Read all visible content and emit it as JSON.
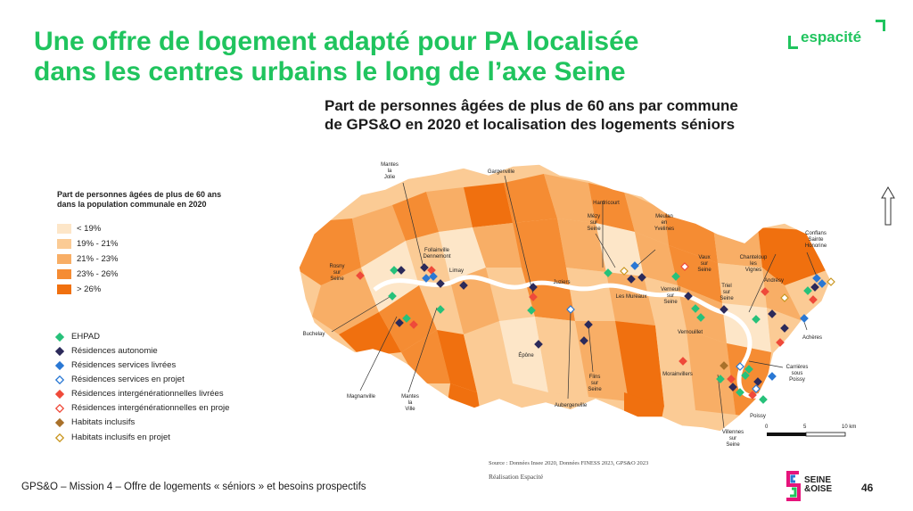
{
  "slide": {
    "title_line1": "Une offre de logement adapté pour PA localisée",
    "title_line2": "dans les centres urbains le long de l’axe Seine",
    "brand": "espacité",
    "footer": "GPS&O – Mission 4 – Offre de logements « séniors » et besoins prospectifs",
    "page_number": "46",
    "partner_logo_line1": "SEINE",
    "partner_logo_line2": "&OISE"
  },
  "map": {
    "title_line1": "Part de personnes âgées de plus de 60 ans par commune",
    "title_line2": "de GPS&O en 2020 et localisation des logements séniors",
    "source": "Source : Données Insee 2020, Données FINESS 2023, GPS&O 2023",
    "realisation": "Réalisation Espacité",
    "scale": {
      "labels": [
        "0",
        "5",
        "10 km"
      ]
    },
    "legend": {
      "title_line1": "Part de personnes âgées de plus de 60 ans",
      "title_line2": "dans la population communale en 2020",
      "classes": [
        {
          "label": "< 19%",
          "color": "#fde6c8"
        },
        {
          "label": "19% - 21%",
          "color": "#fbcb95"
        },
        {
          "label": "21% - 23%",
          "color": "#f8ae66"
        },
        {
          "label": "23% - 26%",
          "color": "#f58c33"
        },
        {
          "label": "> 26%",
          "color": "#f0700f"
        }
      ],
      "symbols": [
        {
          "label": "EHPAD",
          "color": "#27c17a",
          "style": "filled"
        },
        {
          "label": "Résidences autonomie",
          "color": "#2c2a5a",
          "style": "filled"
        },
        {
          "label": "Résidences services livrées",
          "color": "#2a78d4",
          "style": "filled"
        },
        {
          "label": "Résidences services en projet",
          "color": "#2a78d4",
          "style": "outline"
        },
        {
          "label": "Résidences intergénérationnelles livrées",
          "color": "#ef4a3a",
          "style": "filled"
        },
        {
          "label": "Résidences intergénérationnelles en proje",
          "color": "#ef4a3a",
          "style": "outline"
        },
        {
          "label": "Habitats inclusifs",
          "color": "#a9712a",
          "style": "filled"
        },
        {
          "label": "Habitats inclusifs en projet",
          "color": "#c9961f",
          "style": "outline"
        }
      ]
    },
    "place_labels": [
      "Mantes la Jolie",
      "Gargenville",
      "Hardricourt",
      "Meulan en Yvelines",
      "Conflans Sainte Honorine",
      "Follainville Dennemont",
      "Limay",
      "Rosny sur Seine",
      "Mézy sur Seine",
      "Juziers",
      "Les Mureaux",
      "Vaux sur Seine",
      "Chanteloup les Vignes",
      "Andrésy",
      "Verneuil sur Seine",
      "Triel sur Seine",
      "Vernouillet",
      "Buchelay",
      "Achères",
      "Épône",
      "Carrières sous Poissy",
      "Flins sur Seine",
      "Morainvillers",
      "Magnanville",
      "Mantes la Ville",
      "Aubergenville",
      "Villennes sur Seine",
      "Poissy"
    ]
  }
}
